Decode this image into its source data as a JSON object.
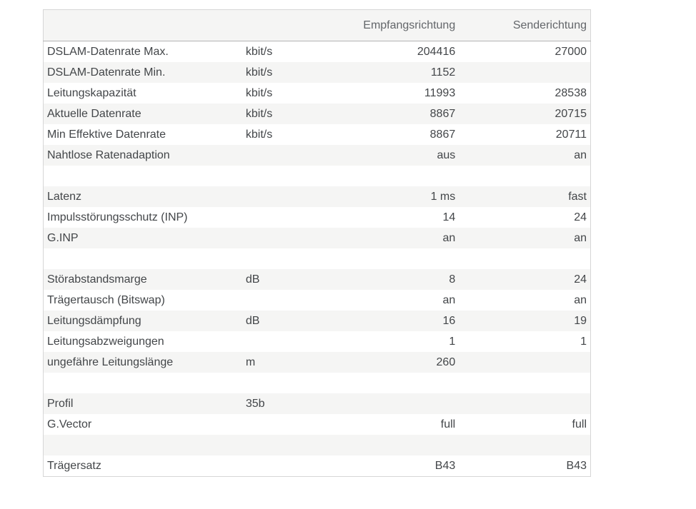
{
  "table": {
    "header": {
      "empfang": "Empfangsrichtung",
      "sende": "Senderichtung"
    },
    "rows": [
      {
        "label": "DSLAM-Datenrate Max.",
        "unit": "kbit/s",
        "rx": "204416",
        "tx": "27000"
      },
      {
        "label": "DSLAM-Datenrate Min.",
        "unit": "kbit/s",
        "rx": "1152",
        "tx": ""
      },
      {
        "label": "Leitungskapazität",
        "unit": "kbit/s",
        "rx": "11993",
        "tx": "28538"
      },
      {
        "label": "Aktuelle Datenrate",
        "unit": "kbit/s",
        "rx": "8867",
        "tx": "20715"
      },
      {
        "label": "Min Effektive Datenrate",
        "unit": "kbit/s",
        "rx": "8867",
        "tx": "20711"
      },
      {
        "label": "Nahtlose Ratenadaption",
        "unit": "",
        "rx": "aus",
        "tx": "an"
      },
      {
        "label": "",
        "unit": "",
        "rx": "",
        "tx": ""
      },
      {
        "label": "Latenz",
        "unit": "",
        "rx": "1 ms",
        "tx": "fast"
      },
      {
        "label": "Impulsstörungsschutz (INP)",
        "unit": "",
        "rx": "14",
        "tx": "24"
      },
      {
        "label": "G.INP",
        "unit": "",
        "rx": "an",
        "tx": "an"
      },
      {
        "label": "",
        "unit": "",
        "rx": "",
        "tx": ""
      },
      {
        "label": "Störabstandsmarge",
        "unit": "dB",
        "rx": "8",
        "tx": "24"
      },
      {
        "label": "Trägertausch (Bitswap)",
        "unit": "",
        "rx": "an",
        "tx": "an"
      },
      {
        "label": "Leitungsdämpfung",
        "unit": "dB",
        "rx": "16",
        "tx": "19"
      },
      {
        "label": "Leitungsabzweigungen",
        "unit": "",
        "rx": "1",
        "tx": "1"
      },
      {
        "label": "ungefähre Leitungslänge",
        "unit": "m",
        "rx": "260",
        "tx": ""
      },
      {
        "label": "",
        "unit": "",
        "rx": "",
        "tx": ""
      },
      {
        "label": "Profil",
        "unit": "35b",
        "rx": "",
        "tx": ""
      },
      {
        "label": "G.Vector",
        "unit": "",
        "rx": "full",
        "tx": "full"
      },
      {
        "label": "",
        "unit": "",
        "rx": "",
        "tx": ""
      },
      {
        "label": "Trägersatz",
        "unit": "",
        "rx": "B43",
        "tx": "B43"
      }
    ],
    "colors": {
      "header_background": "#f5f5f4",
      "stripe_background": "#f5f5f4",
      "header_border": "#b4b4b4",
      "table_border": "#d6d6d6",
      "body_text": "#434649",
      "header_text": "#63666a"
    }
  }
}
